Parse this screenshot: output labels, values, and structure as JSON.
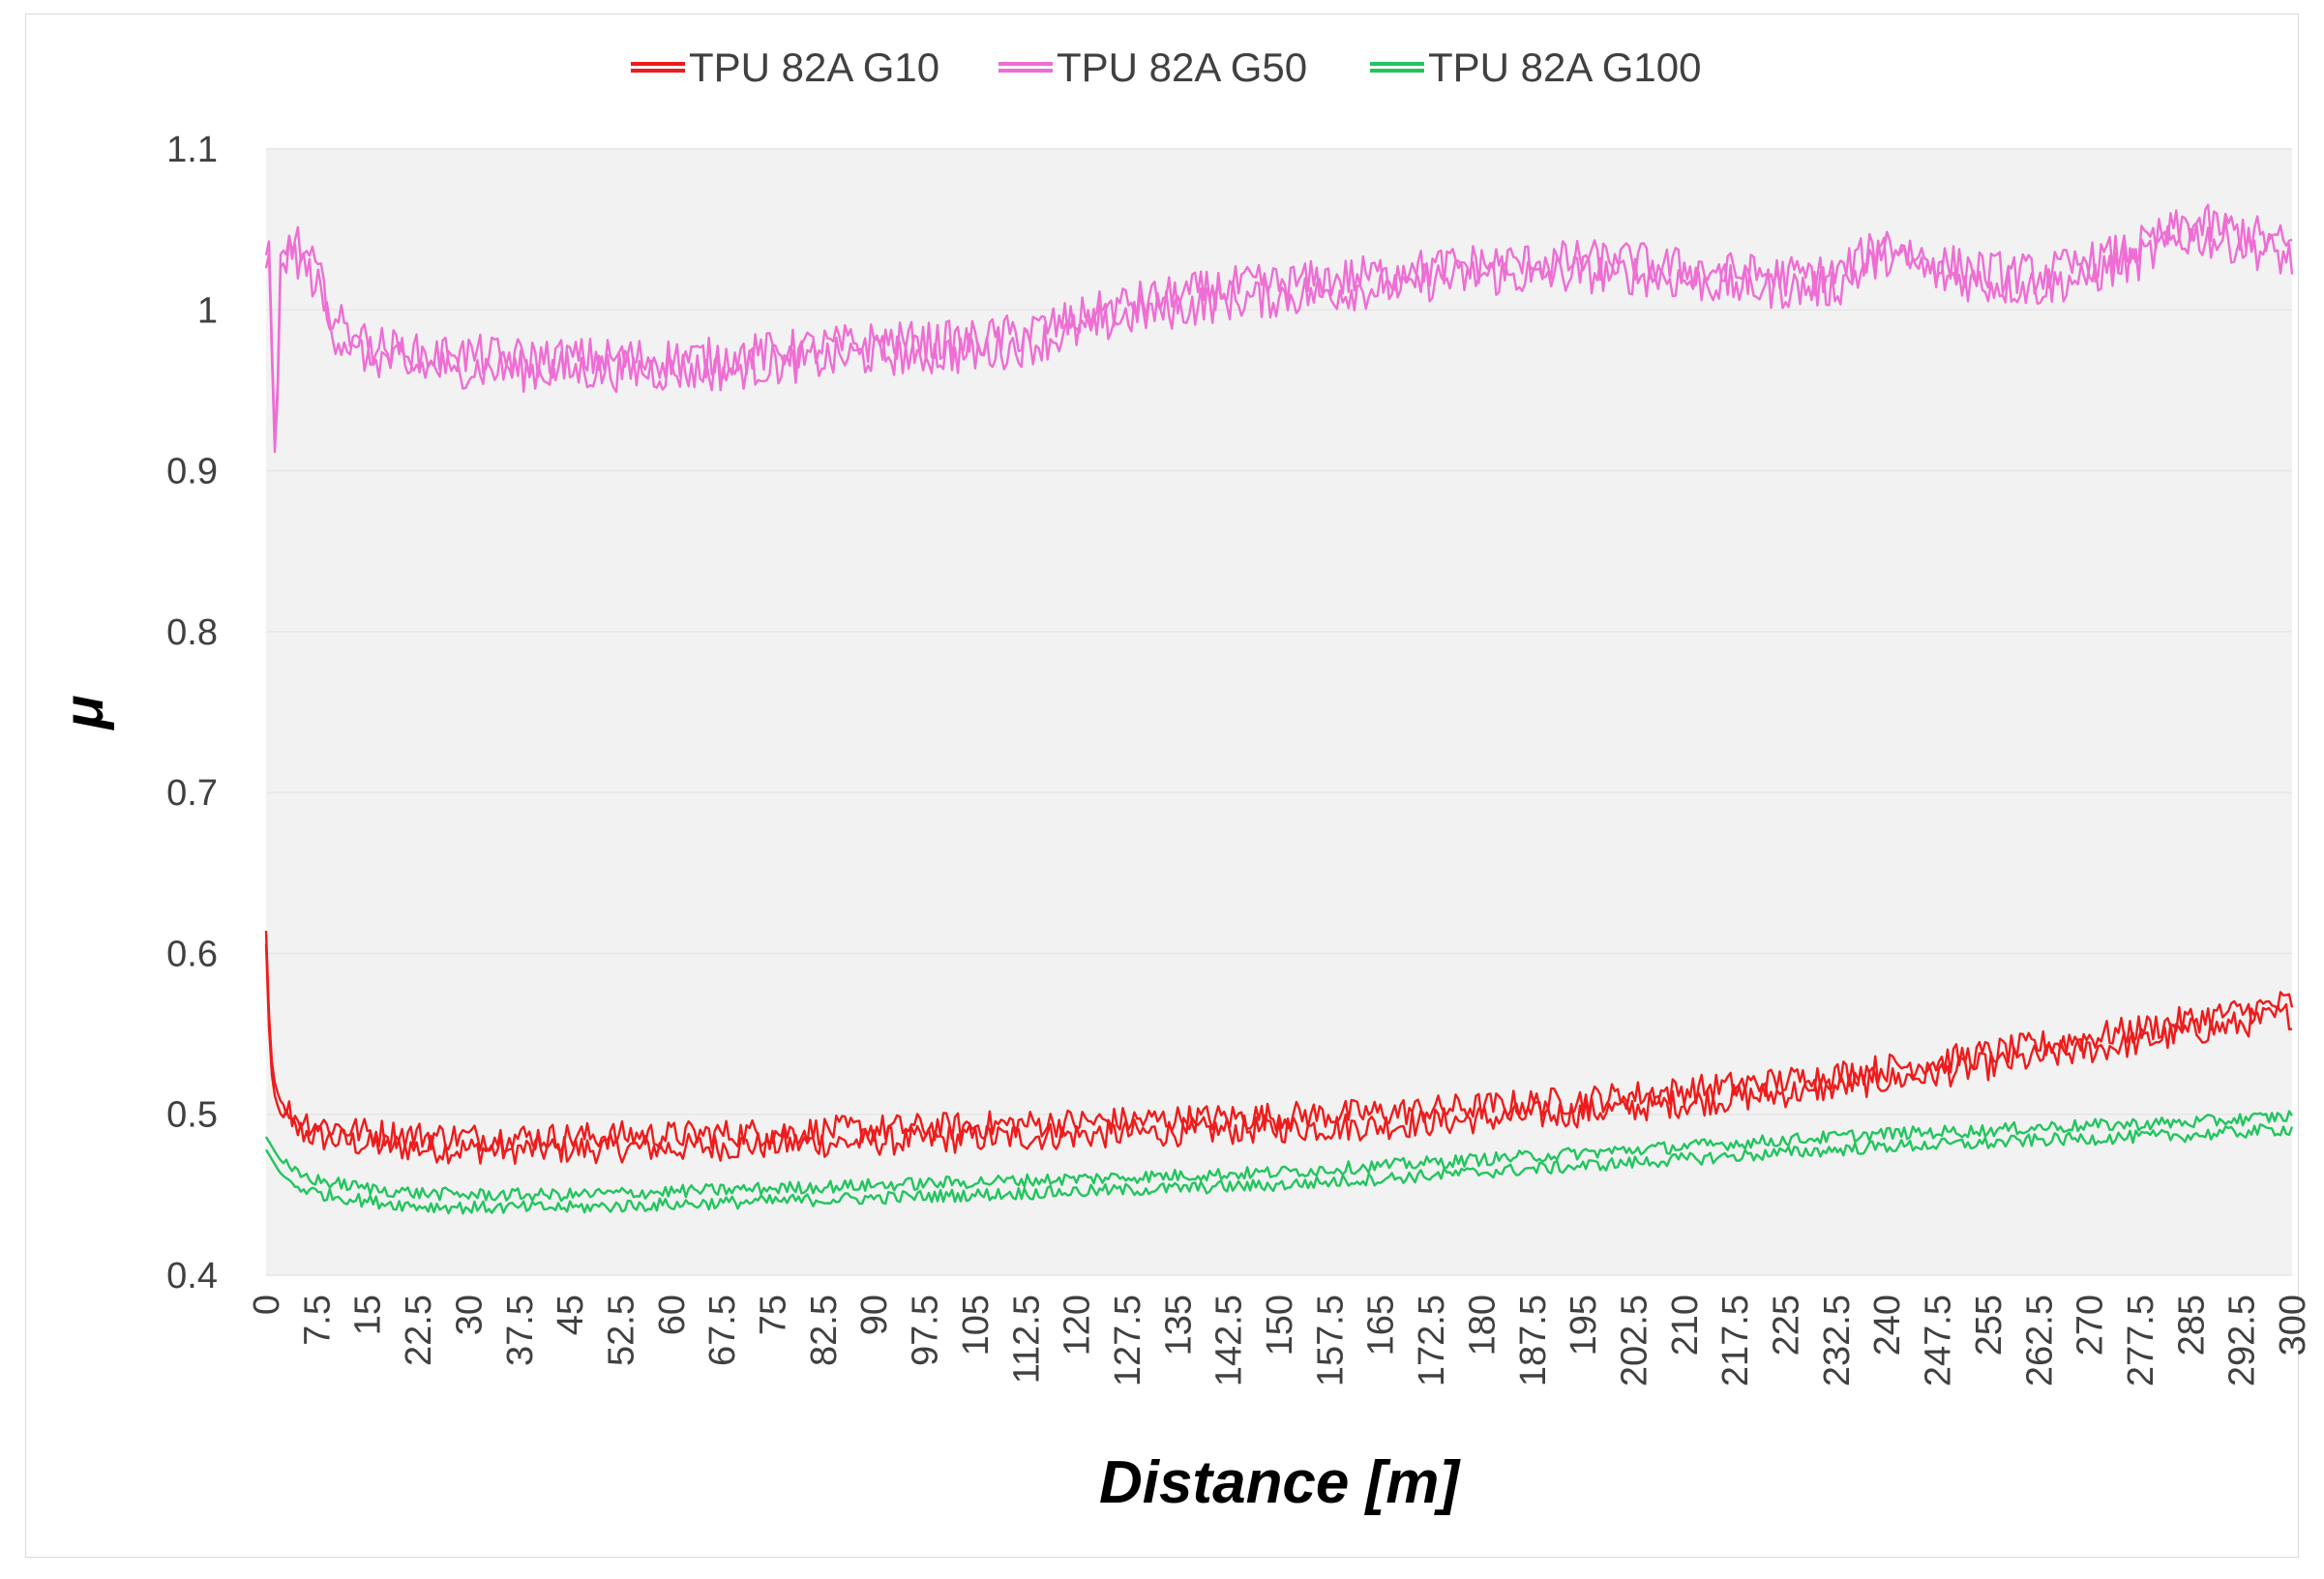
{
  "chart_data": {
    "type": "line",
    "title": "",
    "xlabel": "Distance [m]",
    "ylabel": "μ",
    "xlim": [
      0,
      300
    ],
    "ylim": [
      0.4,
      1.1
    ],
    "y_ticks": [
      "0.4",
      "0.5",
      "0.6",
      "0.7",
      "0.8",
      "0.9",
      "1",
      "1.1"
    ],
    "x_ticks": [
      "0",
      "7.5",
      "15",
      "22.5",
      "30",
      "37.5",
      "45",
      "52.5",
      "60",
      "67.5",
      "75",
      "82.5",
      "90",
      "97.5",
      "105",
      "112.5",
      "120",
      "127.5",
      "135",
      "142.5",
      "150",
      "157.5",
      "165",
      "172.5",
      "180",
      "187.5",
      "195",
      "202.5",
      "210",
      "217.5",
      "225",
      "232.5",
      "240",
      "247.5",
      "255",
      "262.5",
      "270",
      "277.5",
      "285",
      "292.5",
      "300"
    ],
    "grid": true,
    "legend_position": "top-center",
    "series": [
      {
        "name": "TPU 82A G10",
        "color": "#ee1c1c",
        "x": [
          0,
          0.5,
          1,
          2,
          4,
          7.5,
          15,
          22.5,
          30,
          37.5,
          45,
          52.5,
          60,
          67.5,
          75,
          82.5,
          90,
          97.5,
          105,
          112.5,
          120,
          127.5,
          135,
          142.5,
          150,
          157.5,
          165,
          172.5,
          180,
          187.5,
          195,
          202.5,
          210,
          217.5,
          225,
          232.5,
          240,
          247.5,
          255,
          262.5,
          270,
          277.5,
          285,
          292.5,
          300
        ],
        "values": [
          0.61,
          0.55,
          0.52,
          0.505,
          0.495,
          0.49,
          0.485,
          0.483,
          0.482,
          0.482,
          0.482,
          0.483,
          0.483,
          0.484,
          0.485,
          0.486,
          0.487,
          0.488,
          0.489,
          0.49,
          0.491,
          0.492,
          0.493,
          0.494,
          0.495,
          0.496,
          0.497,
          0.499,
          0.501,
          0.503,
          0.505,
          0.508,
          0.511,
          0.514,
          0.517,
          0.521,
          0.525,
          0.529,
          0.534,
          0.539,
          0.544,
          0.549,
          0.555,
          0.56,
          0.566
        ]
      },
      {
        "name": "TPU 82A G50",
        "color": "#ee6ed4",
        "x": [
          0,
          0.5,
          1,
          1.5,
          2,
          4,
          7.5,
          10,
          15,
          22.5,
          30,
          37.5,
          45,
          52.5,
          60,
          67.5,
          75,
          82.5,
          90,
          97.5,
          105,
          112.5,
          120,
          127.5,
          135,
          142.5,
          150,
          157.5,
          165,
          172.5,
          180,
          187.5,
          195,
          202.5,
          210,
          217.5,
          225,
          232.5,
          240,
          247.5,
          255,
          262.5,
          270,
          277.5,
          285,
          292.5,
          300
        ],
        "values": [
          1.03,
          1.04,
          0.95,
          0.89,
          1.03,
          1.04,
          1.02,
          0.99,
          0.975,
          0.968,
          0.968,
          0.966,
          0.966,
          0.966,
          0.966,
          0.966,
          0.97,
          0.973,
          0.976,
          0.976,
          0.977,
          0.982,
          0.99,
          1.0,
          1.005,
          1.01,
          1.012,
          1.015,
          1.018,
          1.022,
          1.025,
          1.025,
          1.027,
          1.026,
          1.022,
          1.019,
          1.017,
          1.018,
          1.038,
          1.025,
          1.02,
          1.018,
          1.025,
          1.035,
          1.05,
          1.045,
          1.035
        ]
      },
      {
        "name": "TPU 82A G100",
        "color": "#22c55e",
        "x": [
          0,
          1,
          2,
          4,
          7.5,
          15,
          22.5,
          30,
          37.5,
          45,
          52.5,
          60,
          67.5,
          75,
          82.5,
          90,
          97.5,
          105,
          112.5,
          120,
          127.5,
          135,
          142.5,
          150,
          157.5,
          165,
          172.5,
          180,
          187.5,
          195,
          202.5,
          210,
          217.5,
          225,
          232.5,
          240,
          247.5,
          255,
          262.5,
          270,
          277.5,
          285,
          292.5,
          300
        ],
        "values": [
          0.482,
          0.475,
          0.468,
          0.46,
          0.455,
          0.45,
          0.447,
          0.446,
          0.446,
          0.446,
          0.447,
          0.448,
          0.449,
          0.45,
          0.451,
          0.452,
          0.453,
          0.454,
          0.455,
          0.456,
          0.457,
          0.458,
          0.459,
          0.46,
          0.462,
          0.464,
          0.466,
          0.468,
          0.47,
          0.472,
          0.474,
          0.476,
          0.478,
          0.48,
          0.482,
          0.484,
          0.485,
          0.486,
          0.488,
          0.489,
          0.49,
          0.491,
          0.493,
          0.495
        ]
      }
    ]
  }
}
